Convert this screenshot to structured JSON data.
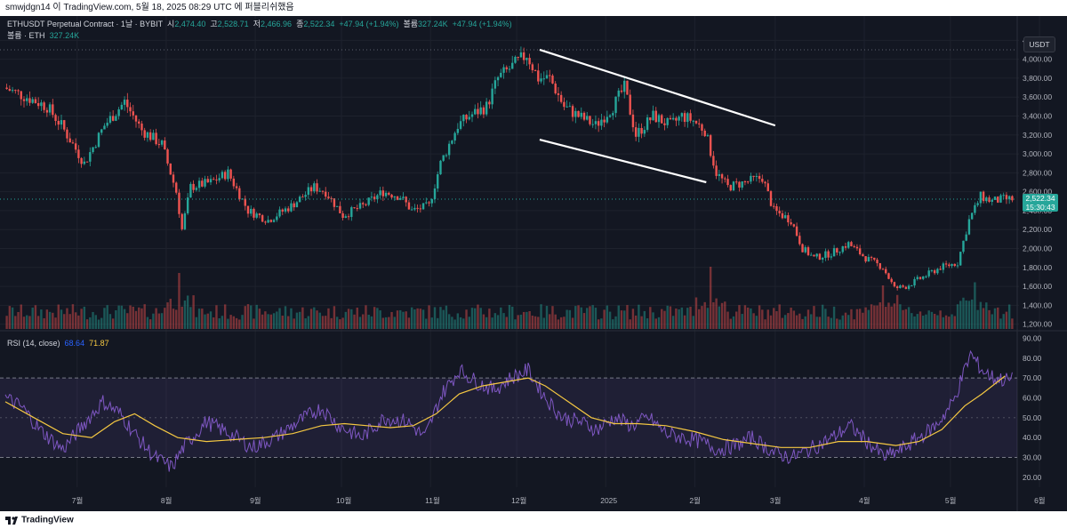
{
  "header": {
    "attribution": "smwjdgn14 이 TradingView.com, 5월 18, 2025 08:29 UTC 에 퍼블리쉬했음"
  },
  "legend": {
    "symbol_line": "ETHUSDT Perpetual Contract · 1날 · BYBIT",
    "open_label": "시",
    "open": "2,474.40",
    "high_label": "고",
    "high": "2,528.71",
    "low_label": "저",
    "low": "2,466.96",
    "close_label": "종",
    "close": "2,522.34",
    "change": "+47.94 (+1.94%)",
    "volume_label": "볼륨",
    "volume": "327.24K",
    "change2": "+47.94 (+1.94%)",
    "volume_line_label": "볼륨 · ETH",
    "volume_line_value": "327.24K",
    "rsi_label": "RSI (14, close)",
    "rsi_value": "68.64",
    "rsi_ma_value": "71.87"
  },
  "currency_button": "USDT",
  "price_badge": {
    "price": "2,522.34",
    "countdown": "15:30:43"
  },
  "footer": {
    "brand": "TradingView"
  },
  "colors": {
    "bg": "#131722",
    "up": "#26a69a",
    "down": "#ef5350",
    "rsi_line": "#7e57c2",
    "rsi_ma": "#f5c842",
    "grid": "#1e222d"
  },
  "chart_data": {
    "type": "candlestick",
    "price_axis_ticks": [
      "4,200.00",
      "4,000.00",
      "3,800.00",
      "3,600.00",
      "3,400.00",
      "3,200.00",
      "3,000.00",
      "2,800.00",
      "2,600.00",
      "2,400.00",
      "2,200.00",
      "2,000.00",
      "1,800.00",
      "1,600.00",
      "1,400.00",
      "1,200.00"
    ],
    "price_range": [
      1150,
      4250
    ],
    "rsi_axis_ticks": [
      "90.00",
      "80.00",
      "70.00",
      "60.00",
      "50.00",
      "40.00",
      "30.00",
      "20.00"
    ],
    "rsi_range": [
      15,
      92
    ],
    "rsi_bands": [
      70,
      30
    ],
    "time_labels": [
      {
        "label": "7월",
        "day": 25
      },
      {
        "label": "8월",
        "day": 56
      },
      {
        "label": "9월",
        "day": 87
      },
      {
        "label": "10월",
        "day": 117
      },
      {
        "label": "11월",
        "day": 148
      },
      {
        "label": "12월",
        "day": 178
      },
      {
        "label": "2025",
        "day": 209
      },
      {
        "label": "2월",
        "day": 240
      },
      {
        "label": "3월",
        "day": 268
      },
      {
        "label": "4월",
        "day": 299
      },
      {
        "label": "5월",
        "day": 329
      },
      {
        "label": "6월",
        "day": 360
      }
    ],
    "total_days": 351,
    "price_path": [
      [
        0,
        3700
      ],
      [
        8,
        3600
      ],
      [
        15,
        3500
      ],
      [
        20,
        3300
      ],
      [
        28,
        2900
      ],
      [
        35,
        3300
      ],
      [
        42,
        3550
      ],
      [
        48,
        3250
      ],
      [
        55,
        3100
      ],
      [
        60,
        2600
      ],
      [
        62,
        2200
      ],
      [
        65,
        2650
      ],
      [
        72,
        2700
      ],
      [
        78,
        2800
      ],
      [
        85,
        2400
      ],
      [
        92,
        2300
      ],
      [
        100,
        2450
      ],
      [
        108,
        2650
      ],
      [
        112,
        2600
      ],
      [
        118,
        2350
      ],
      [
        125,
        2450
      ],
      [
        132,
        2600
      ],
      [
        138,
        2550
      ],
      [
        142,
        2400
      ],
      [
        148,
        2450
      ],
      [
        152,
        2900
      ],
      [
        158,
        3300
      ],
      [
        162,
        3400
      ],
      [
        168,
        3500
      ],
      [
        172,
        3800
      ],
      [
        178,
        3950
      ],
      [
        182,
        4050
      ],
      [
        186,
        3800
      ],
      [
        190,
        3800
      ],
      [
        195,
        3500
      ],
      [
        200,
        3400
      ],
      [
        206,
        3300
      ],
      [
        212,
        3500
      ],
      [
        216,
        3700
      ],
      [
        220,
        3200
      ],
      [
        226,
        3400
      ],
      [
        232,
        3300
      ],
      [
        236,
        3400
      ],
      [
        240,
        3350
      ],
      [
        244,
        3250
      ],
      [
        248,
        2800
      ],
      [
        252,
        2650
      ],
      [
        258,
        2700
      ],
      [
        264,
        2750
      ],
      [
        268,
        2400
      ],
      [
        274,
        2300
      ],
      [
        278,
        2000
      ],
      [
        282,
        1900
      ],
      [
        288,
        1950
      ],
      [
        294,
        2050
      ],
      [
        300,
        1900
      ],
      [
        306,
        1800
      ],
      [
        310,
        1580
      ],
      [
        314,
        1600
      ],
      [
        320,
        1700
      ],
      [
        326,
        1800
      ],
      [
        332,
        1850
      ],
      [
        336,
        2300
      ],
      [
        340,
        2550
      ],
      [
        344,
        2500
      ],
      [
        348,
        2520
      ]
    ],
    "volume_peaks": [
      {
        "day": 60,
        "rel": 0.9
      },
      {
        "day": 245,
        "rel": 1.0
      },
      {
        "day": 305,
        "rel": 0.7
      },
      {
        "day": 337,
        "rel": 0.75
      }
    ],
    "rsi_path": [
      [
        0,
        60
      ],
      [
        6,
        55
      ],
      [
        12,
        44
      ],
      [
        20,
        34
      ],
      [
        28,
        48
      ],
      [
        34,
        58
      ],
      [
        40,
        52
      ],
      [
        46,
        40
      ],
      [
        52,
        30
      ],
      [
        58,
        25
      ],
      [
        62,
        35
      ],
      [
        70,
        48
      ],
      [
        78,
        42
      ],
      [
        86,
        35
      ],
      [
        94,
        40
      ],
      [
        102,
        48
      ],
      [
        110,
        55
      ],
      [
        116,
        46
      ],
      [
        124,
        40
      ],
      [
        132,
        50
      ],
      [
        140,
        48
      ],
      [
        146,
        40
      ],
      [
        152,
        62
      ],
      [
        158,
        74
      ],
      [
        164,
        68
      ],
      [
        170,
        64
      ],
      [
        176,
        70
      ],
      [
        182,
        74
      ],
      [
        188,
        60
      ],
      [
        194,
        50
      ],
      [
        200,
        48
      ],
      [
        206,
        44
      ],
      [
        212,
        50
      ],
      [
        218,
        46
      ],
      [
        224,
        50
      ],
      [
        230,
        42
      ],
      [
        236,
        40
      ],
      [
        242,
        38
      ],
      [
        248,
        34
      ],
      [
        254,
        36
      ],
      [
        260,
        40
      ],
      [
        268,
        32
      ],
      [
        274,
        30
      ],
      [
        280,
        34
      ],
      [
        288,
        40
      ],
      [
        294,
        46
      ],
      [
        300,
        38
      ],
      [
        306,
        30
      ],
      [
        312,
        34
      ],
      [
        318,
        40
      ],
      [
        324,
        46
      ],
      [
        330,
        58
      ],
      [
        336,
        82
      ],
      [
        340,
        74
      ],
      [
        344,
        70
      ],
      [
        348,
        69
      ]
    ],
    "rsi_ma_path": [
      [
        0,
        58
      ],
      [
        10,
        50
      ],
      [
        20,
        42
      ],
      [
        30,
        40
      ],
      [
        38,
        48
      ],
      [
        45,
        52
      ],
      [
        52,
        46
      ],
      [
        60,
        40
      ],
      [
        70,
        38
      ],
      [
        80,
        39
      ],
      [
        90,
        40
      ],
      [
        100,
        42
      ],
      [
        110,
        46
      ],
      [
        118,
        47
      ],
      [
        126,
        46
      ],
      [
        134,
        45
      ],
      [
        142,
        46
      ],
      [
        150,
        52
      ],
      [
        158,
        62
      ],
      [
        166,
        66
      ],
      [
        174,
        68
      ],
      [
        182,
        70
      ],
      [
        188,
        66
      ],
      [
        196,
        58
      ],
      [
        204,
        50
      ],
      [
        212,
        47
      ],
      [
        220,
        47
      ],
      [
        230,
        46
      ],
      [
        240,
        43
      ],
      [
        250,
        39
      ],
      [
        260,
        37
      ],
      [
        270,
        35
      ],
      [
        280,
        35
      ],
      [
        290,
        38
      ],
      [
        300,
        38
      ],
      [
        310,
        36
      ],
      [
        318,
        38
      ],
      [
        326,
        44
      ],
      [
        334,
        56
      ],
      [
        340,
        62
      ],
      [
        348,
        71
      ]
    ],
    "trendlines": [
      {
        "from": [
          186,
          4100
        ],
        "to": [
          268,
          3300
        ]
      },
      {
        "from": [
          186,
          3150
        ],
        "to": [
          244,
          2700
        ]
      }
    ]
  }
}
